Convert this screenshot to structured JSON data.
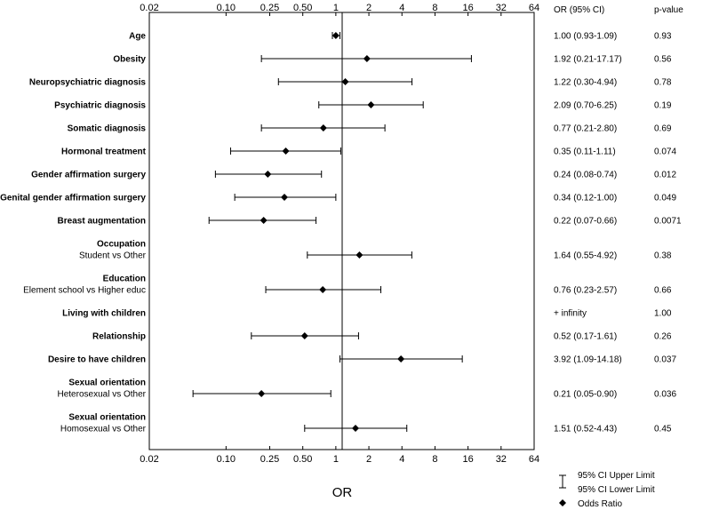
{
  "chart_data": {
    "type": "forest",
    "xlabel": "OR",
    "x_scale": "log2",
    "xlim": [
      0.02,
      64
    ],
    "x_ticks": [
      {
        "value": 0.02,
        "label": "0.02"
      },
      {
        "value": 0.1,
        "label": "0.10"
      },
      {
        "value": 0.25,
        "label": "0.25"
      },
      {
        "value": 0.5,
        "label": "0.50"
      },
      {
        "value": 1,
        "label": "1"
      },
      {
        "value": 2,
        "label": "2"
      },
      {
        "value": 4,
        "label": "4"
      },
      {
        "value": 8,
        "label": "8"
      },
      {
        "value": 16,
        "label": "16"
      },
      {
        "value": 32,
        "label": "32"
      },
      {
        "value": 64,
        "label": "64"
      }
    ],
    "reference_line": 1,
    "column_headers": {
      "or_ci": "OR (95% CI)",
      "p": "p-value"
    },
    "legend": {
      "ci_upper": "95% CI Upper Limit",
      "ci_lower": "95% CI Lower Limit",
      "marker": "Odds Ratio"
    },
    "rows": [
      {
        "label": "Age",
        "sublabel": "",
        "or": 1.0,
        "lo": 0.93,
        "hi": 1.09,
        "or_ci": "1.00 (0.93-1.09)",
        "p": "0.93"
      },
      {
        "label": "Obesity",
        "sublabel": "",
        "or": 1.92,
        "lo": 0.21,
        "hi": 17.17,
        "or_ci": "1.92 (0.21-17.17)",
        "p": "0.56"
      },
      {
        "label": "Neuropsychiatric diagnosis",
        "sublabel": "",
        "or": 1.22,
        "lo": 0.3,
        "hi": 4.94,
        "or_ci": "1.22 (0.30-4.94)",
        "p": "0.78"
      },
      {
        "label": "Psychiatric diagnosis",
        "sublabel": "",
        "or": 2.09,
        "lo": 0.7,
        "hi": 6.25,
        "or_ci": "2.09 (0.70-6.25)",
        "p": "0.19"
      },
      {
        "label": "Somatic diagnosis",
        "sublabel": "",
        "or": 0.77,
        "lo": 0.21,
        "hi": 2.8,
        "or_ci": "0.77 (0.21-2.80)",
        "p": "0.69"
      },
      {
        "label": "Hormonal treatment",
        "sublabel": "",
        "or": 0.35,
        "lo": 0.11,
        "hi": 1.11,
        "or_ci": "0.35 (0.11-1.11)",
        "p": "0.074"
      },
      {
        "label": "Gender affirmation surgery",
        "sublabel": "",
        "or": 0.24,
        "lo": 0.08,
        "hi": 0.74,
        "or_ci": "0.24 (0.08-0.74)",
        "p": "0.012"
      },
      {
        "label": "Genital gender affirmation surgery",
        "sublabel": "",
        "or": 0.34,
        "lo": 0.12,
        "hi": 1.0,
        "or_ci": "0.34 (0.12-1.00)",
        "p": "0.049"
      },
      {
        "label": "Breast augmentation",
        "sublabel": "",
        "or": 0.22,
        "lo": 0.07,
        "hi": 0.66,
        "or_ci": "0.22 (0.07-0.66)",
        "p": "0.0071"
      },
      {
        "label": "Occupation",
        "sublabel": "Student vs Other",
        "or": 1.64,
        "lo": 0.55,
        "hi": 4.92,
        "or_ci": "1.64 (0.55-4.92)",
        "p": "0.38"
      },
      {
        "label": "Education",
        "sublabel": "Element school vs Higher educ",
        "or": 0.76,
        "lo": 0.23,
        "hi": 2.57,
        "or_ci": "0.76 (0.23-2.57)",
        "p": "0.66"
      },
      {
        "label": "Living with children",
        "sublabel": "",
        "or": null,
        "lo": null,
        "hi": null,
        "or_ci": "+ infinity",
        "p": "1.00"
      },
      {
        "label": "Relationship",
        "sublabel": "",
        "or": 0.52,
        "lo": 0.17,
        "hi": 1.61,
        "or_ci": "0.52 (0.17-1.61)",
        "p": "0.26"
      },
      {
        "label": "Desire to have children",
        "sublabel": "",
        "or": 3.92,
        "lo": 1.09,
        "hi": 14.18,
        "or_ci": "3.92 (1.09-14.18)",
        "p": "0.037"
      },
      {
        "label": "Sexual orientation",
        "sublabel": "Heterosexual vs Other",
        "or": 0.21,
        "lo": 0.05,
        "hi": 0.9,
        "or_ci": "0.21 (0.05-0.90)",
        "p": "0.036"
      },
      {
        "label": "Sexual orientation",
        "sublabel": "Homosexual vs Other",
        "or": 1.51,
        "lo": 0.52,
        "hi": 4.43,
        "or_ci": "1.51 (0.52-4.43)",
        "p": "0.45"
      }
    ]
  }
}
